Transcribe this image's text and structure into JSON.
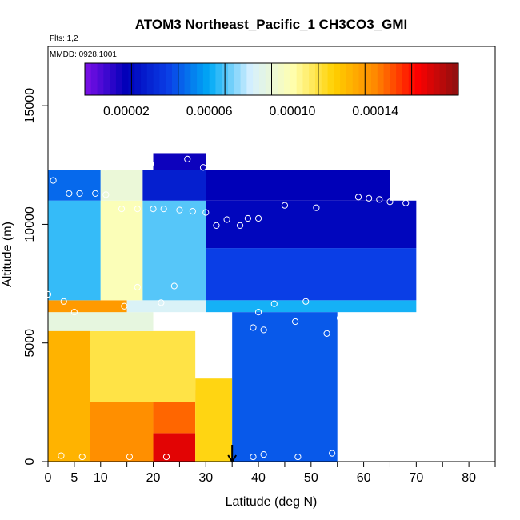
{
  "chart_data": {
    "type": "heatmap",
    "title": "ATOM3 Northeast_Pacific_1 CH3CO3_GMI",
    "flights_label": "Flts: 1,2",
    "dates_label": "MMDD: 0928,1001",
    "xlabel": "Latitude (deg N)",
    "ylabel": "Altitude (m)",
    "xlim": [
      0,
      85
    ],
    "ylim": [
      0,
      17500
    ],
    "x_ticks": [
      0,
      5,
      10,
      20,
      30,
      40,
      50,
      60,
      70,
      80
    ],
    "y_ticks": [
      0,
      5000,
      10000,
      15000
    ],
    "colorbar": {
      "min": 0.0,
      "max": 0.00018,
      "ticks": [
        "0.00002",
        "0.00006",
        "0.00010",
        "0.00014"
      ],
      "tick_values": [
        2e-05,
        6e-05,
        0.0001,
        0.00014
      ],
      "colors": [
        "#7f10e8",
        "#0000b8",
        "#0a3ee6",
        "#00aaf5",
        "#d6f0ff",
        "#ffffb0",
        "#ffd000",
        "#ff8800",
        "#ff0000",
        "#8b1010"
      ]
    },
    "arrow_latitude": 35,
    "regions": [
      {
        "lat": [
          0,
          8
        ],
        "alt": [
          0,
          6000
        ],
        "value": 0.000128
      },
      {
        "lat": [
          8,
          20
        ],
        "alt": [
          0,
          2500
        ],
        "value": 0.000138
      },
      {
        "lat": [
          20,
          28
        ],
        "alt": [
          0,
          1200
        ],
        "value": 0.000165
      },
      {
        "lat": [
          20,
          28
        ],
        "alt": [
          1200,
          3000
        ],
        "value": 0.000145
      },
      {
        "lat": [
          28,
          35
        ],
        "alt": [
          0,
          3500
        ],
        "value": 0.000118
      },
      {
        "lat": [
          8,
          28
        ],
        "alt": [
          2500,
          5500
        ],
        "value": 0.000112
      },
      {
        "lat": [
          0,
          20
        ],
        "alt": [
          5500,
          6300
        ],
        "value": 8.8e-05
      },
      {
        "lat": [
          0,
          15
        ],
        "alt": [
          6300,
          6800
        ],
        "value": 0.000135
      },
      {
        "lat": [
          15,
          30
        ],
        "alt": [
          6300,
          6800
        ],
        "value": 8.2e-05
      },
      {
        "lat": [
          30,
          70
        ],
        "alt": [
          6300,
          6800
        ],
        "value": 6.2e-05
      },
      {
        "lat": [
          35,
          55
        ],
        "alt": [
          0,
          6300
        ],
        "value": 4.5e-05
      },
      {
        "lat": [
          0,
          10
        ],
        "alt": [
          6800,
          11000
        ],
        "value": 6.5e-05
      },
      {
        "lat": [
          10,
          18
        ],
        "alt": [
          6800,
          11000
        ],
        "value": 9.8e-05
      },
      {
        "lat": [
          18,
          30
        ],
        "alt": [
          6800,
          11000
        ],
        "value": 6.8e-05
      },
      {
        "lat": [
          30,
          70
        ],
        "alt": [
          6800,
          9000
        ],
        "value": 4e-05
      },
      {
        "lat": [
          30,
          70
        ],
        "alt": [
          9000,
          11000
        ],
        "value": 2.2e-05
      },
      {
        "lat": [
          0,
          10
        ],
        "alt": [
          11000,
          12300
        ],
        "value": 4.8e-05
      },
      {
        "lat": [
          10,
          18
        ],
        "alt": [
          11000,
          12300
        ],
        "value": 9e-05
      },
      {
        "lat": [
          18,
          30
        ],
        "alt": [
          11000,
          12300
        ],
        "value": 3e-05
      },
      {
        "lat": [
          30,
          65
        ],
        "alt": [
          11000,
          12300
        ],
        "value": 2e-05
      },
      {
        "lat": [
          20,
          30
        ],
        "alt": [
          12300,
          13000
        ],
        "value": 1.8e-05
      }
    ],
    "observations": [
      [
        2.5,
        250
      ],
      [
        6.5,
        200
      ],
      [
        15.5,
        200
      ],
      [
        22.5,
        200
      ],
      [
        39,
        200
      ],
      [
        41,
        300
      ],
      [
        47.5,
        200
      ],
      [
        54,
        350
      ],
      [
        3,
        6750
      ],
      [
        5,
        6300
      ],
      [
        14.5,
        6550
      ],
      [
        21.5,
        6700
      ],
      [
        40,
        6300
      ],
      [
        43,
        6650
      ],
      [
        49,
        6750
      ],
      [
        55.5,
        6050
      ],
      [
        71,
        6150
      ],
      [
        39,
        5650
      ],
      [
        41,
        5550
      ],
      [
        47,
        5900
      ],
      [
        53,
        5400
      ],
      [
        17,
        7350
      ],
      [
        24,
        7400
      ],
      [
        0,
        7050
      ],
      [
        1,
        11850
      ],
      [
        4,
        11300
      ],
      [
        6,
        11300
      ],
      [
        9,
        11300
      ],
      [
        11,
        11250
      ],
      [
        14,
        10650
      ],
      [
        17,
        10650
      ],
      [
        20,
        10650
      ],
      [
        22,
        10650
      ],
      [
        25,
        10600
      ],
      [
        27.5,
        10550
      ],
      [
        30,
        10500
      ],
      [
        32,
        9950
      ],
      [
        34,
        10200
      ],
      [
        36.5,
        9950
      ],
      [
        38,
        10250
      ],
      [
        40,
        10250
      ],
      [
        45,
        10800
      ],
      [
        51,
        10700
      ],
      [
        59,
        11150
      ],
      [
        61,
        11100
      ],
      [
        63,
        11050
      ],
      [
        65,
        10950
      ],
      [
        68,
        10900
      ],
      [
        19.5,
        12550
      ],
      [
        26.5,
        12750
      ],
      [
        29.5,
        12400
      ],
      [
        11,
        12400
      ]
    ]
  }
}
